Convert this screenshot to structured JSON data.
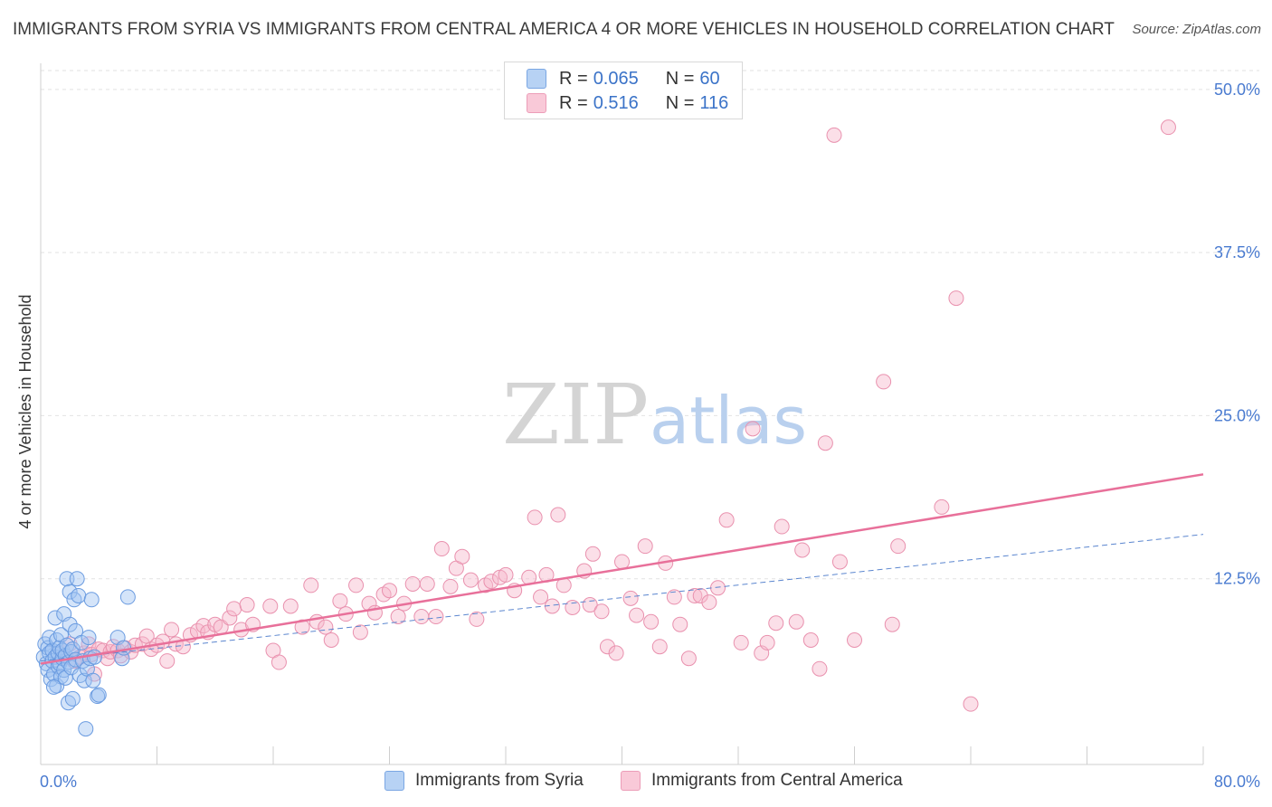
{
  "title": "IMMIGRANTS FROM SYRIA VS IMMIGRANTS FROM CENTRAL AMERICA 4 OR MORE VEHICLES IN HOUSEHOLD CORRELATION CHART",
  "source": "Source: ZipAtlas.com",
  "watermark": {
    "zip": "ZIP",
    "atlas": "atlas"
  },
  "legend": {
    "series1": {
      "r_label": "R = ",
      "r_value": "0.065",
      "n_label": "N = ",
      "n_value": "60"
    },
    "series2": {
      "r_label": "R = ",
      "r_value": "0.516",
      "n_label": "N = ",
      "n_value": "116"
    }
  },
  "colors": {
    "syria": "#9fc3f2",
    "syria_stroke": "#6a9be0",
    "central": "#f6b8cc",
    "central_stroke": "#e991ae",
    "central_line": "#e8709a",
    "syria_line": "#5b86cf",
    "axis_text": "#4a7bd0"
  },
  "chart_data": {
    "type": "scatter",
    "title": "IMMIGRANTS FROM SYRIA VS IMMIGRANTS FROM CENTRAL AMERICA 4 OR MORE VEHICLES IN HOUSEHOLD CORRELATION CHART",
    "xlabel": "",
    "ylabel": "4 or more Vehicles in Household",
    "xlim": [
      0,
      80
    ],
    "ylim": [
      0,
      52
    ],
    "x_tick_labels": [
      "0.0%",
      "80.0%"
    ],
    "y_ticks": [
      12.5,
      25.0,
      37.5,
      50.0
    ],
    "y_tick_labels": [
      "12.5%",
      "25.0%",
      "37.5%",
      "50.0%"
    ],
    "grid": true,
    "legend_position": "top-center",
    "series": [
      {
        "name": "Immigrants from Syria",
        "r": 0.065,
        "n": 60,
        "trend": {
          "x": [
            0,
            80
          ],
          "y": [
            6.2,
            15.9
          ]
        },
        "points": [
          [
            0.2,
            6.5
          ],
          [
            0.3,
            7.5
          ],
          [
            0.4,
            6.0
          ],
          [
            0.5,
            7.2
          ],
          [
            0.5,
            5.5
          ],
          [
            0.6,
            8.0
          ],
          [
            0.6,
            6.8
          ],
          [
            0.7,
            4.8
          ],
          [
            0.8,
            7.0
          ],
          [
            0.8,
            6.2
          ],
          [
            0.9,
            5.2
          ],
          [
            1.0,
            9.5
          ],
          [
            1.0,
            6.5
          ],
          [
            1.1,
            7.8
          ],
          [
            1.1,
            4.3
          ],
          [
            1.2,
            6.8
          ],
          [
            1.2,
            5.8
          ],
          [
            1.3,
            7.2
          ],
          [
            1.3,
            6.0
          ],
          [
            1.4,
            5.0
          ],
          [
            1.4,
            8.2
          ],
          [
            1.5,
            6.4
          ],
          [
            1.5,
            7.0
          ],
          [
            1.6,
            9.8
          ],
          [
            1.6,
            5.5
          ],
          [
            1.7,
            6.6
          ],
          [
            1.7,
            4.9
          ],
          [
            1.8,
            12.5
          ],
          [
            1.8,
            7.4
          ],
          [
            1.9,
            3.0
          ],
          [
            1.9,
            6.1
          ],
          [
            2.0,
            11.5
          ],
          [
            2.0,
            9.0
          ],
          [
            2.1,
            5.7
          ],
          [
            2.1,
            6.9
          ],
          [
            2.2,
            7.1
          ],
          [
            2.2,
            3.3
          ],
          [
            2.3,
            10.9
          ],
          [
            2.4,
            6.3
          ],
          [
            2.4,
            8.5
          ],
          [
            2.5,
            12.5
          ],
          [
            2.6,
            11.2
          ],
          [
            2.7,
            5.1
          ],
          [
            2.8,
            7.6
          ],
          [
            2.9,
            6.2
          ],
          [
            3.0,
            4.7
          ],
          [
            3.1,
            1.0
          ],
          [
            3.2,
            5.6
          ],
          [
            3.3,
            8.0
          ],
          [
            3.4,
            6.4
          ],
          [
            3.5,
            10.9
          ],
          [
            3.6,
            4.7
          ],
          [
            3.7,
            6.5
          ],
          [
            3.9,
            3.5
          ],
          [
            4.0,
            3.6
          ],
          [
            5.3,
            8.0
          ],
          [
            5.6,
            6.4
          ],
          [
            5.7,
            7.2
          ],
          [
            6.0,
            11.1
          ],
          [
            0.9,
            4.2
          ]
        ]
      },
      {
        "name": "Immigrants from Central America",
        "r": 0.516,
        "n": 116,
        "trend": {
          "x": [
            0,
            80
          ],
          "y": [
            6.0,
            20.5
          ]
        },
        "points": [
          [
            1.2,
            6.8
          ],
          [
            1.6,
            6.5
          ],
          [
            2.0,
            7.5
          ],
          [
            2.3,
            6.2
          ],
          [
            2.7,
            6.5
          ],
          [
            3.0,
            6.8
          ],
          [
            3.3,
            7.5
          ],
          [
            3.5,
            6.7
          ],
          [
            3.7,
            5.2
          ],
          [
            4.0,
            7.1
          ],
          [
            4.3,
            7.0
          ],
          [
            4.6,
            6.4
          ],
          [
            4.8,
            6.9
          ],
          [
            5.0,
            7.3
          ],
          [
            5.3,
            7.0
          ],
          [
            5.5,
            6.6
          ],
          [
            5.8,
            7.2
          ],
          [
            6.2,
            6.9
          ],
          [
            6.5,
            7.4
          ],
          [
            7.0,
            7.5
          ],
          [
            7.3,
            8.1
          ],
          [
            7.6,
            7.1
          ],
          [
            8.0,
            7.4
          ],
          [
            8.4,
            7.7
          ],
          [
            8.7,
            6.2
          ],
          [
            9.0,
            8.6
          ],
          [
            9.3,
            7.5
          ],
          [
            9.8,
            7.3
          ],
          [
            10.3,
            8.2
          ],
          [
            10.8,
            8.5
          ],
          [
            11.2,
            8.9
          ],
          [
            11.5,
            8.4
          ],
          [
            12.0,
            9.0
          ],
          [
            12.4,
            8.8
          ],
          [
            13.0,
            9.5
          ],
          [
            13.3,
            10.2
          ],
          [
            13.8,
            8.6
          ],
          [
            14.2,
            10.5
          ],
          [
            14.6,
            9.0
          ],
          [
            15.8,
            10.4
          ],
          [
            16.0,
            7.0
          ],
          [
            16.4,
            6.1
          ],
          [
            17.2,
            10.4
          ],
          [
            18.0,
            8.8
          ],
          [
            18.6,
            12.0
          ],
          [
            19.0,
            9.2
          ],
          [
            19.6,
            8.8
          ],
          [
            20.0,
            7.8
          ],
          [
            20.6,
            10.8
          ],
          [
            21.0,
            9.8
          ],
          [
            21.7,
            12.0
          ],
          [
            22.0,
            8.4
          ],
          [
            22.6,
            10.6
          ],
          [
            23.0,
            9.9
          ],
          [
            23.6,
            11.3
          ],
          [
            24.0,
            11.6
          ],
          [
            24.6,
            9.6
          ],
          [
            25.0,
            10.6
          ],
          [
            25.6,
            12.1
          ],
          [
            26.2,
            9.6
          ],
          [
            26.6,
            12.1
          ],
          [
            27.2,
            9.6
          ],
          [
            27.6,
            14.8
          ],
          [
            28.2,
            11.9
          ],
          [
            28.6,
            13.3
          ],
          [
            29.0,
            14.2
          ],
          [
            29.6,
            12.4
          ],
          [
            30.0,
            9.4
          ],
          [
            30.6,
            12.0
          ],
          [
            31.0,
            12.3
          ],
          [
            31.6,
            12.6
          ],
          [
            32.0,
            12.8
          ],
          [
            32.6,
            11.6
          ],
          [
            33.6,
            12.6
          ],
          [
            34.0,
            17.2
          ],
          [
            34.4,
            11.1
          ],
          [
            34.8,
            12.8
          ],
          [
            35.2,
            10.4
          ],
          [
            35.6,
            17.4
          ],
          [
            36.0,
            12.0
          ],
          [
            36.6,
            10.3
          ],
          [
            37.4,
            13.1
          ],
          [
            37.8,
            10.5
          ],
          [
            38.0,
            14.4
          ],
          [
            38.6,
            10.0
          ],
          [
            39.0,
            7.3
          ],
          [
            39.6,
            6.8
          ],
          [
            40.0,
            13.8
          ],
          [
            40.6,
            11.0
          ],
          [
            41.0,
            9.7
          ],
          [
            41.6,
            15.0
          ],
          [
            42.0,
            9.2
          ],
          [
            42.6,
            7.3
          ],
          [
            43.0,
            13.7
          ],
          [
            43.6,
            11.1
          ],
          [
            44.0,
            9.0
          ],
          [
            44.6,
            6.4
          ],
          [
            45.0,
            11.2
          ],
          [
            45.4,
            11.2
          ],
          [
            46.0,
            10.7
          ],
          [
            46.6,
            11.8
          ],
          [
            47.2,
            17.0
          ],
          [
            48.2,
            7.6
          ],
          [
            49.0,
            24.0
          ],
          [
            49.6,
            6.8
          ],
          [
            50.0,
            7.6
          ],
          [
            50.6,
            9.1
          ],
          [
            51.0,
            16.5
          ],
          [
            52.0,
            9.2
          ],
          [
            52.4,
            14.7
          ],
          [
            53.0,
            7.8
          ],
          [
            53.6,
            5.6
          ],
          [
            54.0,
            22.9
          ],
          [
            54.6,
            46.5
          ],
          [
            55.0,
            13.8
          ],
          [
            56.0,
            7.8
          ],
          [
            58.0,
            27.6
          ],
          [
            58.6,
            9.0
          ],
          [
            59.0,
            15.0
          ],
          [
            62.0,
            18.0
          ],
          [
            63.0,
            34.0
          ],
          [
            64.0,
            2.9
          ],
          [
            77.6,
            47.1
          ]
        ]
      }
    ]
  },
  "bottom_legend": {
    "syria": "Immigrants from Syria",
    "central": "Immigrants from Central America"
  }
}
